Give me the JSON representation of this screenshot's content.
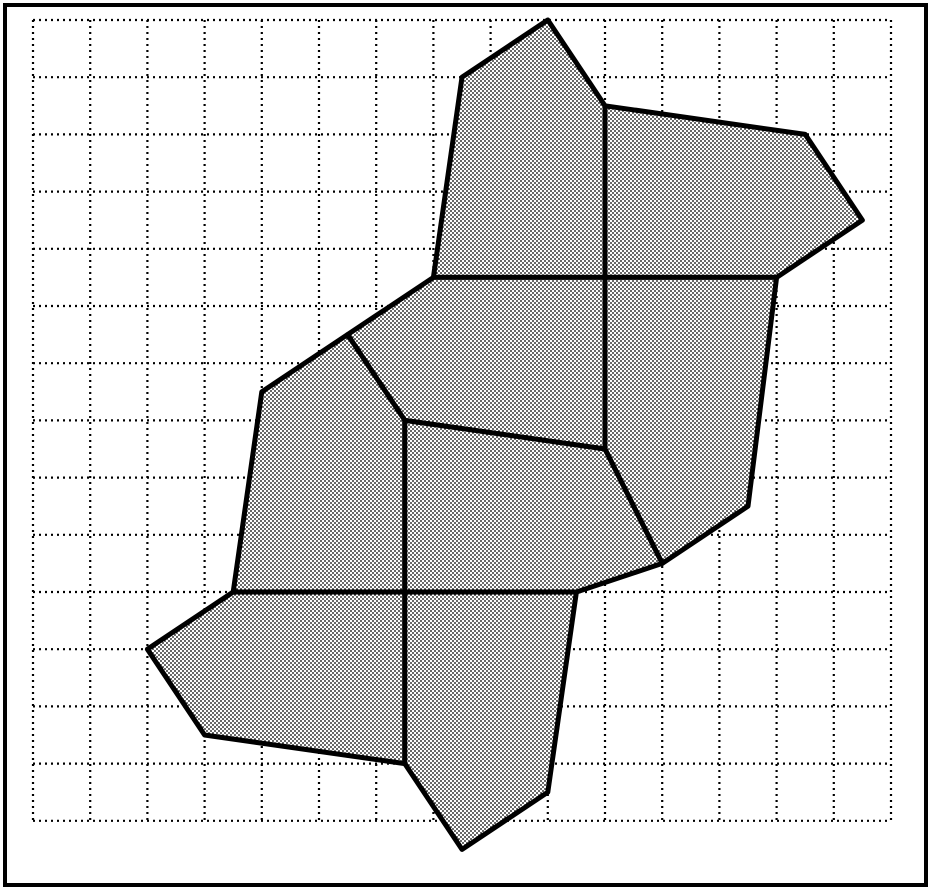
{
  "diagram": {
    "kind": "pentagonal-tiling-on-grid",
    "grid": {
      "columns": 15,
      "rows": 14,
      "style": "dotted",
      "color": "#000000"
    },
    "tile_fill": "#cfcfcf",
    "tile_pattern": "dot-stipple",
    "outline_color": "#000000",
    "background": "#ffffff",
    "tiles": [
      {
        "id": "tile-top-left",
        "vertices": [
          [
            7.5,
            1
          ],
          [
            9,
            0
          ],
          [
            10,
            1.5
          ],
          [
            10,
            4.5
          ],
          [
            7,
            4.5
          ]
        ]
      },
      {
        "id": "tile-top-right",
        "vertices": [
          [
            10,
            1.5
          ],
          [
            13.5,
            2
          ],
          [
            14.5,
            3.5
          ],
          [
            13,
            4.5
          ],
          [
            10,
            4.5
          ]
        ]
      },
      {
        "id": "tile-center-upper",
        "vertices": [
          [
            7,
            4.5
          ],
          [
            10,
            4.5
          ],
          [
            10,
            7.5
          ],
          [
            6.5,
            7
          ],
          [
            5.5,
            5.5
          ]
        ]
      },
      {
        "id": "tile-right-middle",
        "vertices": [
          [
            10,
            4.5
          ],
          [
            13,
            4.5
          ],
          [
            12.5,
            8.5
          ],
          [
            11,
            9.5
          ],
          [
            10,
            7.5
          ]
        ]
      },
      {
        "id": "tile-left-middle",
        "vertices": [
          [
            5.5,
            5.5
          ],
          [
            6.5,
            7
          ],
          [
            6.5,
            10
          ],
          [
            3.5,
            10
          ],
          [
            4,
            6.5
          ]
        ]
      },
      {
        "id": "tile-center-lower",
        "vertices": [
          [
            6.5,
            7
          ],
          [
            10,
            7.5
          ],
          [
            11,
            9.5
          ],
          [
            9.5,
            10
          ],
          [
            6.5,
            10
          ]
        ]
      },
      {
        "id": "tile-bottom-left",
        "vertices": [
          [
            3.5,
            10
          ],
          [
            6.5,
            10
          ],
          [
            6.5,
            13
          ],
          [
            3,
            12.5
          ],
          [
            2,
            11
          ]
        ]
      },
      {
        "id": "tile-bottom-right",
        "vertices": [
          [
            6.5,
            10
          ],
          [
            9.5,
            10
          ],
          [
            9,
            13.5
          ],
          [
            7.5,
            14.5
          ],
          [
            6.5,
            13
          ]
        ]
      }
    ]
  }
}
